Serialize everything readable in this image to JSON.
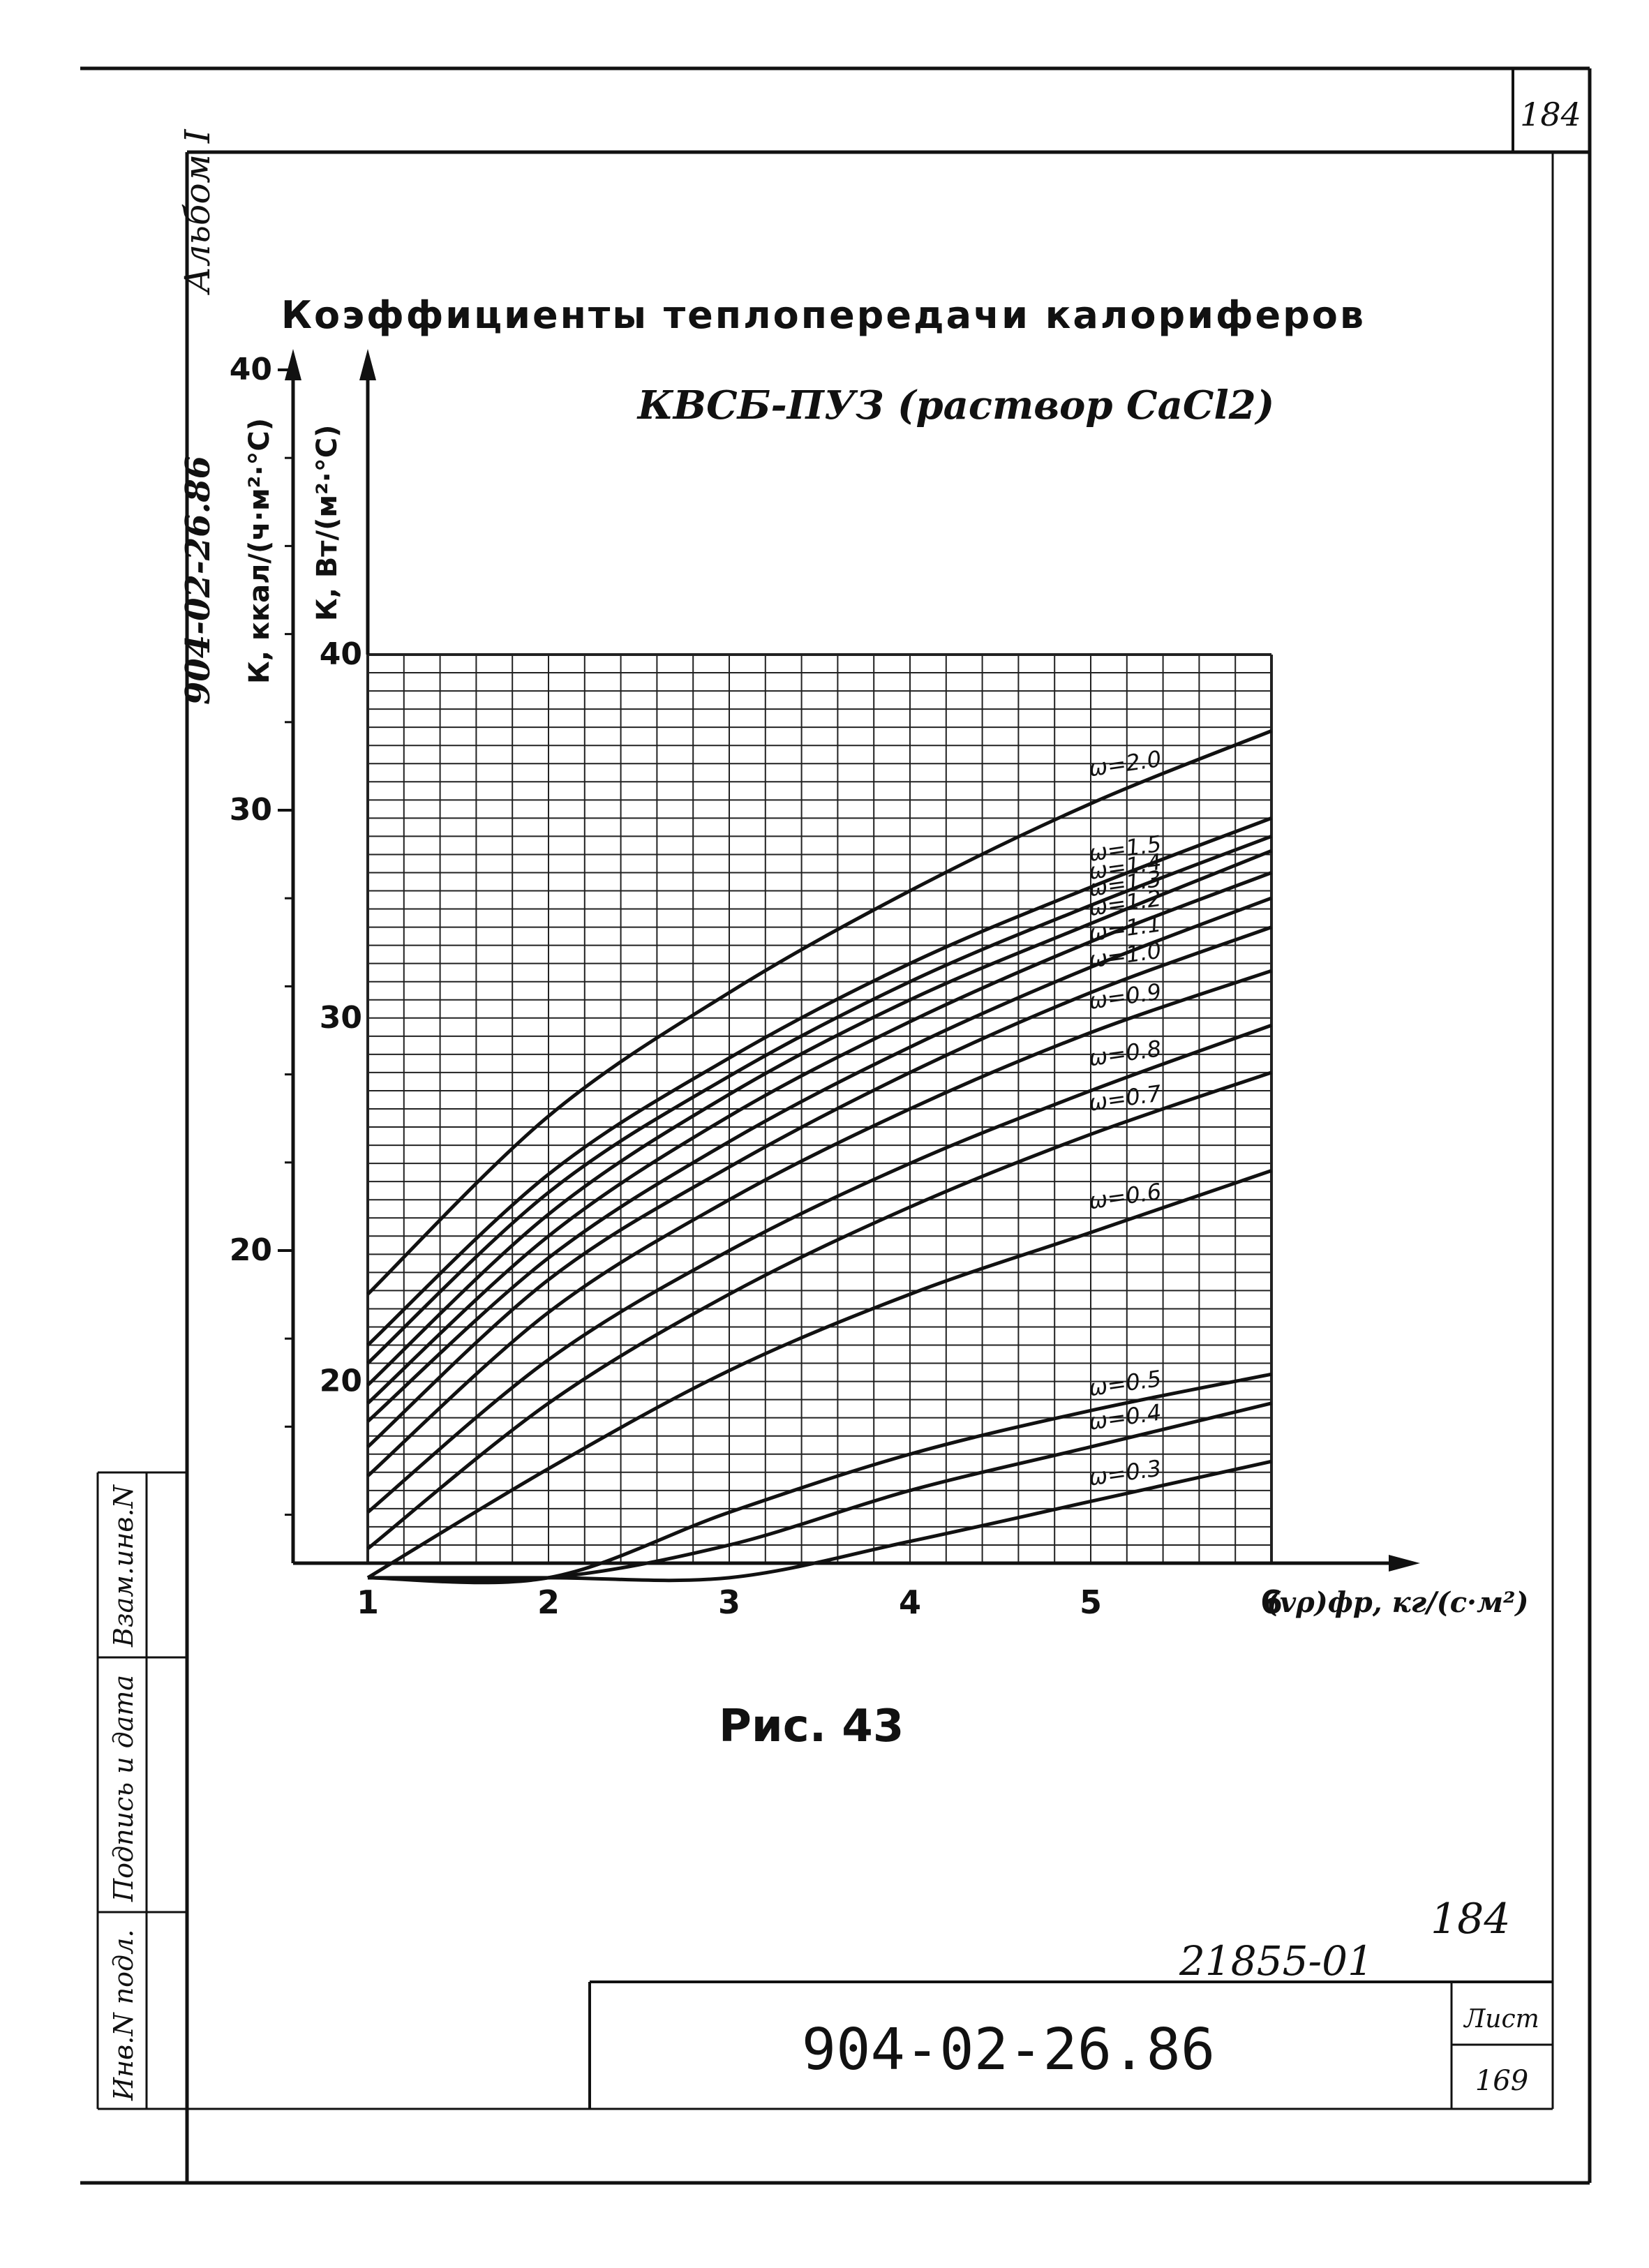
{
  "page": {
    "corner_number": "184",
    "album_label": "Альбом I",
    "side_code": "904-02-26.86",
    "side_stamps": [
      "Инв.N подл.",
      "Подпись и дата",
      "Взам.инв.N"
    ],
    "figure_caption": "Рис. 43",
    "page_number_handwritten": "184",
    "inventory_number": "21855-01",
    "title_block": {
      "code": "904-02-26.86",
      "sheet_label": "Лист",
      "sheet_number": "169"
    }
  },
  "chart_data": {
    "type": "line",
    "title": "Коэффициенты теплопередачи калориферов",
    "subtitle": "КВСБ-ПУЗ (раствор CaCl2)",
    "xlabel": "(vρ)фр, кг/(с·м²)",
    "ylabel_kcal": "К, ккал/(ч·м²·°С)",
    "ylabel_w": "К, Вт/(м²·°С)",
    "x_ticks": [
      "1",
      "2",
      "3",
      "4",
      "5",
      "6"
    ],
    "y_ticks_w": [
      "20",
      "30",
      "40"
    ],
    "y_ticks_kcal": [
      "20",
      "30",
      "40"
    ],
    "xlim": [
      1,
      6
    ],
    "ylim_w": [
      15,
      40
    ],
    "ylim_kcal_outer": [
      12.9,
      40
    ],
    "grid": true,
    "series": [
      {
        "name": "ω=2.0",
        "x": [
          1,
          2,
          3,
          4,
          5,
          6
        ],
        "values": [
          22.4,
          27.3,
          30.7,
          33.5,
          35.9,
          37.9
        ]
      },
      {
        "name": "ω=1.5",
        "x": [
          1,
          2,
          3,
          4,
          5,
          6
        ],
        "values": [
          21.0,
          25.7,
          28.9,
          31.5,
          33.6,
          35.5
        ]
      },
      {
        "name": "ω=1.4",
        "x": [
          1,
          2,
          3,
          4,
          5,
          6
        ],
        "values": [
          20.5,
          25.2,
          28.4,
          31.0,
          33.1,
          35.0
        ]
      },
      {
        "name": "ω=1.3",
        "x": [
          1,
          2,
          3,
          4,
          5,
          6
        ],
        "values": [
          19.9,
          24.6,
          27.9,
          30.5,
          32.6,
          34.6
        ]
      },
      {
        "name": "ω=1.2",
        "x": [
          1,
          2,
          3,
          4,
          5,
          6
        ],
        "values": [
          19.4,
          24.0,
          27.3,
          29.9,
          32.1,
          34.0
        ]
      },
      {
        "name": "ω=1.1",
        "x": [
          1,
          2,
          3,
          4,
          5,
          6
        ],
        "values": [
          18.9,
          23.4,
          26.6,
          29.2,
          31.4,
          33.3
        ]
      },
      {
        "name": "ω=1.0",
        "x": [
          1,
          2,
          3,
          4,
          5,
          6
        ],
        "values": [
          18.2,
          22.8,
          25.9,
          28.5,
          30.7,
          32.5
        ]
      },
      {
        "name": "ω=0.9",
        "x": [
          1,
          2,
          3,
          4,
          5,
          6
        ],
        "values": [
          17.4,
          21.9,
          25.0,
          27.5,
          29.6,
          31.3
        ]
      },
      {
        "name": "ω=0.8",
        "x": [
          1,
          2,
          3,
          4,
          5,
          6
        ],
        "values": [
          16.4,
          20.6,
          23.6,
          26.0,
          28.0,
          29.8
        ]
      },
      {
        "name": "ω=0.7",
        "x": [
          1,
          2,
          3,
          4,
          5,
          6
        ],
        "values": [
          15.4,
          19.4,
          22.4,
          24.8,
          26.8,
          28.5
        ]
      },
      {
        "name": "ω=0.6",
        "x": [
          1,
          2,
          3,
          4,
          5,
          6
        ],
        "values": [
          13.9,
          17.6,
          20.3,
          22.4,
          24.1,
          25.8
        ]
      },
      {
        "name": "ω=0.5",
        "x": [
          1,
          2,
          3,
          4,
          5,
          6
        ],
        "values": [
          11.0,
          14.2,
          16.4,
          18.0,
          19.2,
          20.2
        ]
      },
      {
        "name": "ω=0.4",
        "x": [
          1,
          2,
          3,
          4,
          5,
          6
        ],
        "values": [
          10.8,
          13.6,
          15.5,
          17.0,
          18.2,
          19.4
        ]
      },
      {
        "name": "ω=0.3",
        "x": [
          1,
          2,
          3,
          4,
          5,
          6
        ],
        "values": [
          10.5,
          12.8,
          14.3,
          15.6,
          16.7,
          17.8
        ]
      }
    ]
  },
  "style": {
    "ink": "#111111",
    "grid": "#222222",
    "paper": "#ffffff"
  }
}
